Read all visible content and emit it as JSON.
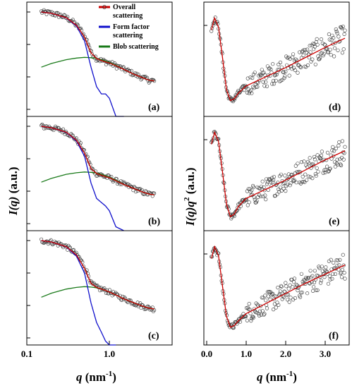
{
  "chart_data": [
    {
      "panel": "(a)",
      "type": "line",
      "xscale": "log",
      "yscale": "log",
      "xlim": [
        0.1,
        5
      ],
      "xticks": [
        "0.1",
        "1.0"
      ],
      "ylabel": "I(q) (a.u.)",
      "xlabel": "q (nm-1)",
      "series": [
        {
          "name": "Overall scattering",
          "color": "#cc0000",
          "style": "points+line"
        },
        {
          "name": "Form factor scattering",
          "color": "#1010cc"
        },
        {
          "name": "Blob scattering",
          "color": "#1a7a1a"
        }
      ],
      "x": [
        0.15,
        0.2,
        0.3,
        0.4,
        0.5,
        0.6,
        0.7,
        0.8,
        0.9,
        1.0,
        1.2,
        1.5,
        2.0,
        2.5,
        3.0,
        3.5
      ],
      "overall": [
        1.0,
        0.91,
        0.67,
        0.39,
        0.17,
        0.055,
        0.037,
        0.032,
        0.029,
        0.027,
        0.022,
        0.017,
        0.012,
        0.0095,
        0.008,
        0.0075
      ],
      "form": [
        1.0,
        0.91,
        0.66,
        0.37,
        0.13,
        0.02,
        0.005,
        0.003,
        0.003,
        0.0022,
        0.0006,
        0.0001
      ],
      "blob": [
        0.02,
        0.026,
        0.034,
        0.038,
        0.04,
        0.039,
        0.037,
        0.034,
        0.031,
        0.028,
        0.023,
        0.017,
        0.012,
        0.0095,
        0.008,
        0.0075
      ]
    },
    {
      "panel": "(b)",
      "type": "line",
      "xscale": "log",
      "yscale": "log",
      "x": [
        0.15,
        0.2,
        0.3,
        0.4,
        0.5,
        0.6,
        0.7,
        0.8,
        0.9,
        1.0,
        1.2,
        1.5,
        2.0,
        2.5,
        3.0,
        3.5
      ],
      "overall": [
        1.0,
        0.9,
        0.66,
        0.37,
        0.15,
        0.05,
        0.035,
        0.031,
        0.028,
        0.026,
        0.021,
        0.016,
        0.012,
        0.0095,
        0.0082,
        0.0077
      ],
      "form": [
        1.0,
        0.9,
        0.65,
        0.35,
        0.12,
        0.018,
        0.006,
        0.0045,
        0.0035,
        0.0025,
        0.0008,
        0.0001
      ],
      "blob": [
        0.019,
        0.025,
        0.033,
        0.037,
        0.039,
        0.038,
        0.036,
        0.033,
        0.03,
        0.027,
        0.022,
        0.016,
        0.012,
        0.0095,
        0.0082,
        0.0077
      ]
    },
    {
      "panel": "(c)",
      "type": "line",
      "xscale": "log",
      "yscale": "log",
      "x": [
        0.15,
        0.2,
        0.3,
        0.4,
        0.5,
        0.6,
        0.7,
        0.8,
        0.9,
        1.0,
        1.2,
        1.5,
        2.0,
        2.5,
        3.0,
        3.5
      ],
      "overall": [
        1.0,
        0.9,
        0.65,
        0.36,
        0.14,
        0.048,
        0.036,
        0.032,
        0.029,
        0.026,
        0.021,
        0.016,
        0.012,
        0.0096,
        0.0083,
        0.0078
      ],
      "form": [
        1.0,
        0.9,
        0.64,
        0.33,
        0.1,
        0.012,
        0.003,
        0.0015,
        0.0008,
        0.0003,
        8e-05
      ],
      "blob": [
        0.018,
        0.024,
        0.032,
        0.036,
        0.038,
        0.037,
        0.035,
        0.032,
        0.029,
        0.026,
        0.021,
        0.016,
        0.012,
        0.0096,
        0.0083,
        0.0078
      ]
    },
    {
      "panel": "(d)",
      "type": "scatter",
      "xscale": "linear",
      "yscale": "linear",
      "xlim": [
        0,
        3.6
      ],
      "xticks": [
        "0.0",
        "1.0",
        "2.0",
        "3.0"
      ],
      "ylabel": "I(q)q2 (a.u.)",
      "xlabel": "q (nm-1)",
      "x": [
        0.12,
        0.2,
        0.3,
        0.4,
        0.5,
        0.6,
        0.7,
        0.8,
        1.0,
        1.5,
        2.0,
        2.5,
        3.0,
        3.5
      ],
      "fit": [
        0.85,
        0.98,
        0.88,
        0.55,
        0.2,
        0.08,
        0.1,
        0.16,
        0.24,
        0.34,
        0.44,
        0.55,
        0.66,
        0.76
      ]
    },
    {
      "panel": "(e)",
      "type": "scatter",
      "xscale": "linear",
      "yscale": "linear",
      "x": [
        0.12,
        0.2,
        0.3,
        0.4,
        0.5,
        0.6,
        0.7,
        0.8,
        1.0,
        1.5,
        2.0,
        2.5,
        3.0,
        3.5
      ],
      "fit": [
        0.85,
        0.98,
        0.88,
        0.55,
        0.2,
        0.06,
        0.09,
        0.17,
        0.26,
        0.36,
        0.46,
        0.57,
        0.68,
        0.78
      ]
    },
    {
      "panel": "(f)",
      "type": "scatter",
      "xscale": "linear",
      "yscale": "linear",
      "x": [
        0.12,
        0.2,
        0.3,
        0.4,
        0.5,
        0.6,
        0.7,
        0.8,
        1.0,
        1.5,
        2.0,
        2.5,
        3.0,
        3.5
      ],
      "fit": [
        0.85,
        0.98,
        0.88,
        0.55,
        0.22,
        0.1,
        0.12,
        0.17,
        0.25,
        0.36,
        0.47,
        0.58,
        0.68,
        0.78
      ]
    }
  ],
  "labels": {
    "ylabel_left_main": "I(q)",
    "ylabel_left_unit": " (a.u.)",
    "ylabel_right_main": "I(q)q",
    "ylabel_right_sup": "2",
    "ylabel_right_unit": " (a.u.)",
    "xlabel_main": "q",
    "xlabel_unit": " (nm",
    "xlabel_sup": "-1",
    "xlabel_close": ")",
    "legend_overall_1": "Overall",
    "legend_overall_2": "scattering",
    "legend_form_1": "Form factor",
    "legend_form_2": "scattering",
    "legend_blob": "Blob scattering",
    "panel_a": "(a)",
    "panel_b": "(b)",
    "panel_c": "(c)",
    "panel_d": "(d)",
    "panel_e": "(e)",
    "panel_f": "(f)",
    "tick_left_01": "0.1",
    "tick_left_10": "1.0",
    "tick_right_00": "0.0",
    "tick_right_10": "1.0",
    "tick_right_20": "2.0",
    "tick_right_30": "3.0"
  }
}
